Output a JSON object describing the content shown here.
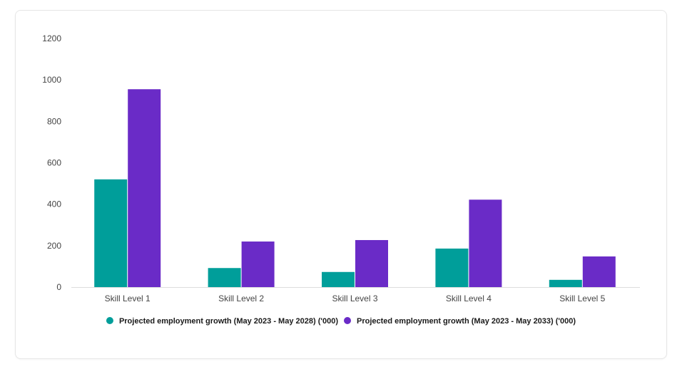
{
  "chart_data": {
    "type": "bar",
    "categories": [
      "Skill Level 1",
      "Skill Level 2",
      "Skill Level 3",
      "Skill Level 4",
      "Skill Level 5"
    ],
    "series": [
      {
        "name": "Projected employment growth (May 2023 - May 2028) ('000)",
        "color": "#009e9a",
        "values": [
          520,
          92,
          73,
          186,
          35
        ]
      },
      {
        "name": "Projected employment growth (May 2023 - May 2033) ('000)",
        "color": "#6a2bc7",
        "values": [
          955,
          220,
          227,
          422,
          148
        ]
      }
    ],
    "yticks": [
      0,
      200,
      400,
      600,
      800,
      1000,
      1200
    ],
    "ylim": [
      0,
      1200
    ],
    "title": "",
    "xlabel": "",
    "ylabel": "",
    "grid": false,
    "legend_position": "bottom"
  }
}
